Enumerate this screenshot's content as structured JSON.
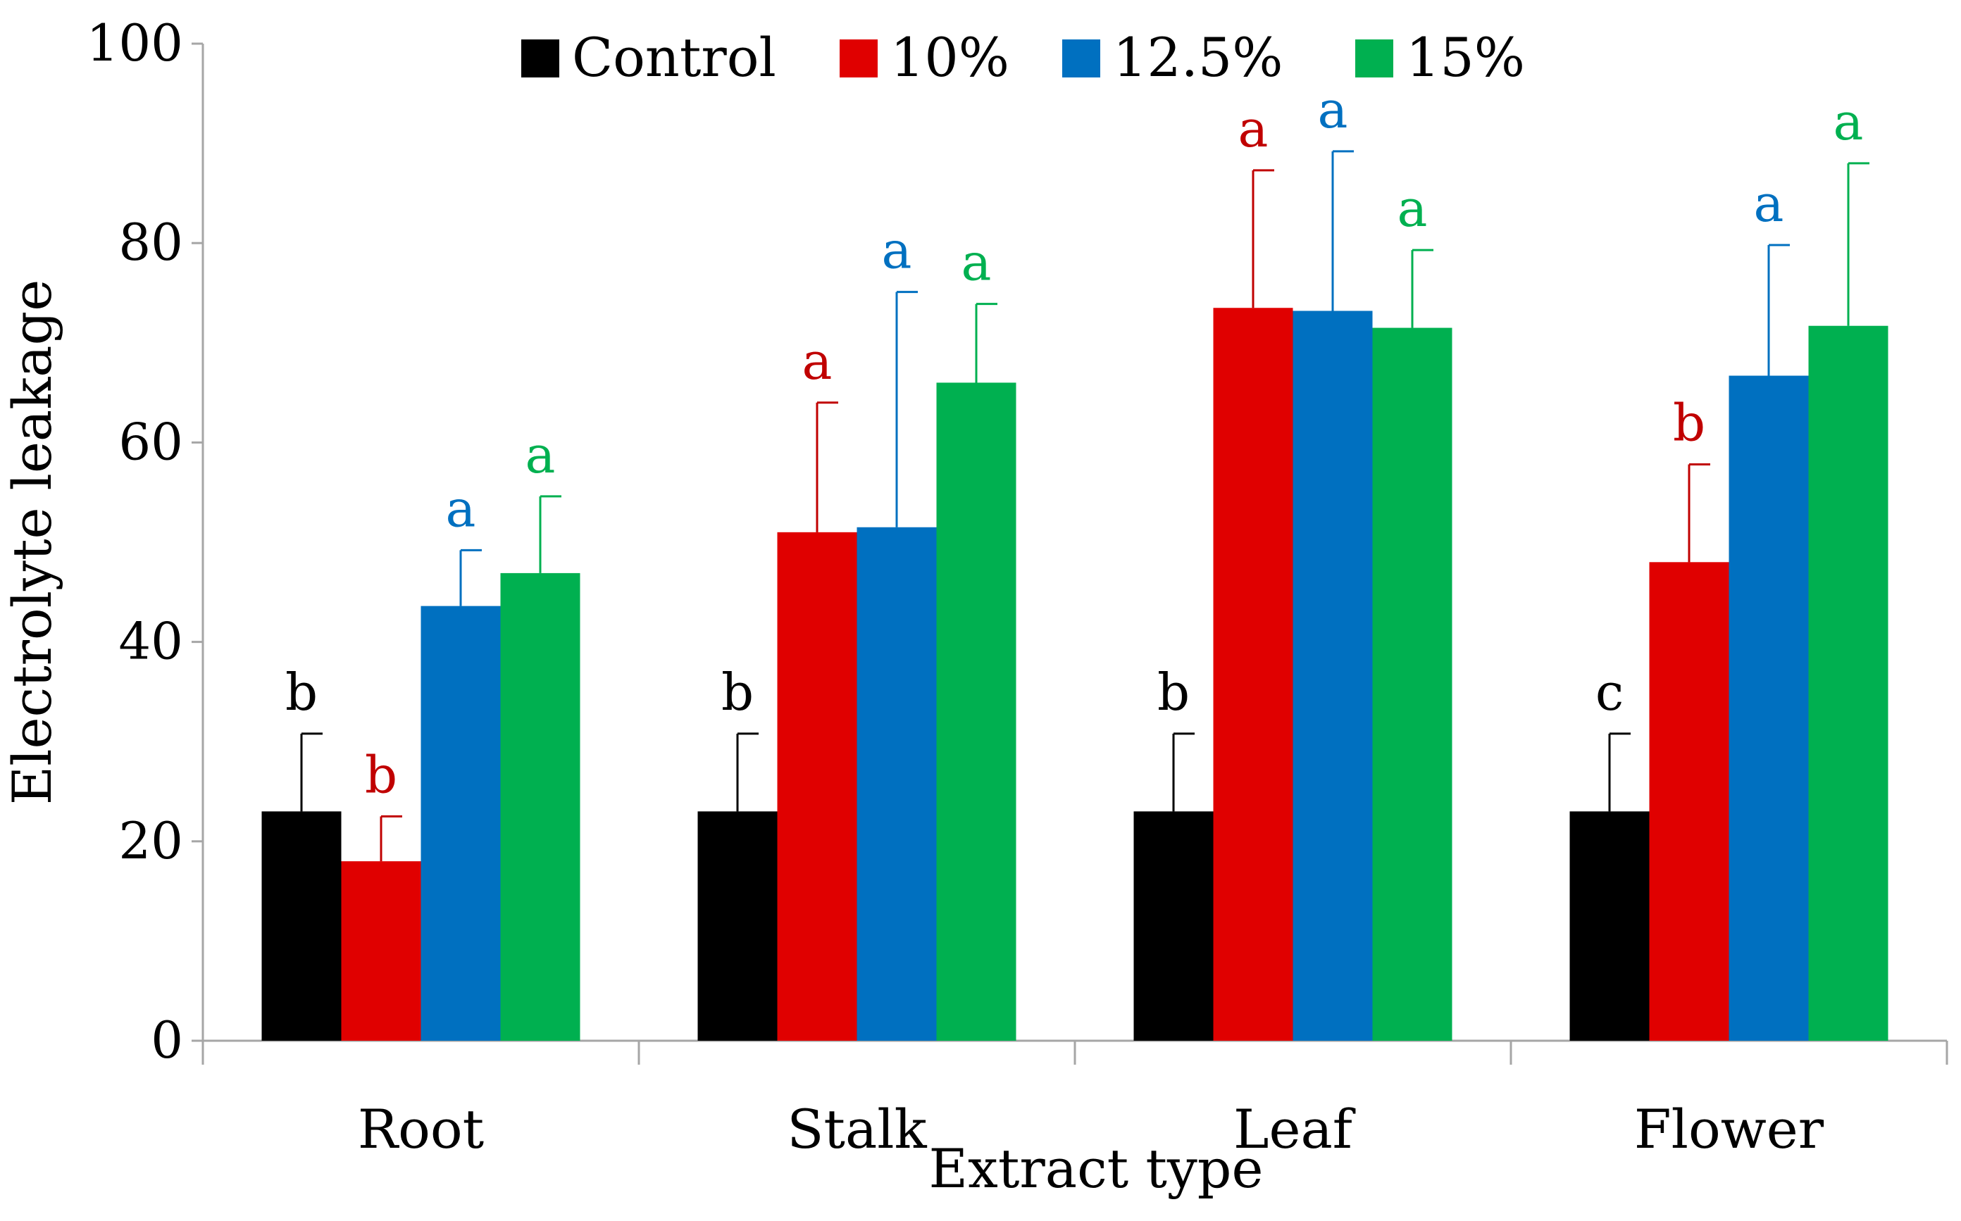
{
  "chart_data": {
    "type": "bar",
    "title": "",
    "xlabel": "Extract type",
    "ylabel": "Electrolyte leakage",
    "ylim": [
      0,
      100
    ],
    "yticks": [
      0,
      20,
      40,
      60,
      80,
      100
    ],
    "grid": false,
    "legend_position": "top",
    "categories": [
      "Root",
      "Stalk",
      "Leaf",
      "Flower"
    ],
    "series": [
      {
        "name": "Control",
        "color": "#000000",
        "values": [
          23,
          23,
          23,
          23
        ],
        "errors": [
          7.8,
          7.8,
          7.8,
          7.8
        ],
        "letters": [
          "b",
          "b",
          "b",
          "c"
        ]
      },
      {
        "name": "10%",
        "color": "#e00000",
        "values": [
          18,
          51,
          73.5,
          48
        ],
        "errors": [
          4.5,
          13,
          13.8,
          9.8
        ],
        "letters": [
          "b",
          "a",
          "a",
          "b"
        ]
      },
      {
        "name": "12.5%",
        "color": "#0070c0",
        "values": [
          43.6,
          51.5,
          73.2,
          66.7
        ],
        "errors": [
          5.6,
          23.6,
          16,
          13.1
        ],
        "letters": [
          "a",
          "a",
          "a",
          "a"
        ]
      },
      {
        "name": "15%",
        "color": "#00b050",
        "values": [
          46.9,
          66,
          71.5,
          71.7
        ],
        "errors": [
          7.7,
          7.9,
          7.8,
          16.3
        ],
        "letters": [
          "a",
          "a",
          "a",
          "a"
        ]
      }
    ],
    "letter_colors": [
      "#000000",
      "#c00000",
      "#0070c0",
      "#00b050"
    ]
  }
}
